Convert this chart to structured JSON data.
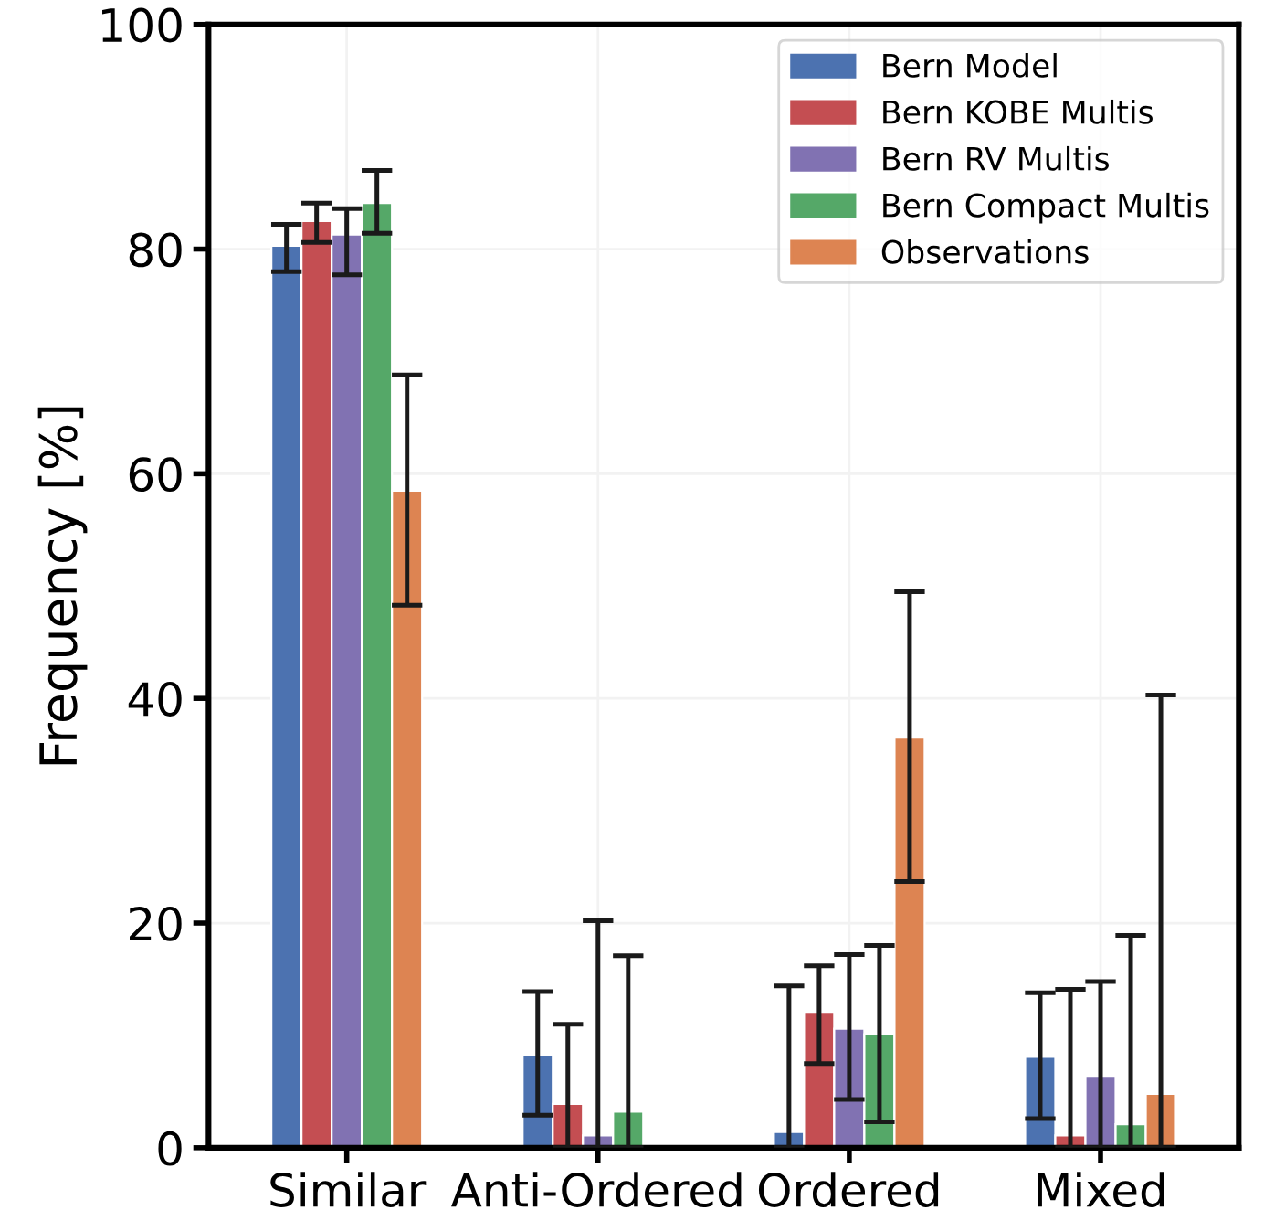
{
  "chart_data": {
    "type": "bar",
    "ylabel": "Frequency [%]",
    "categories": [
      "Similar",
      "Anti-Ordered",
      "Ordered",
      "Mixed"
    ],
    "series": [
      {
        "name": "Bern Model",
        "color": "#4c72b0",
        "values": [
          80.3,
          8.3,
          1.4,
          8.1
        ],
        "errors": [
          [
            78.0,
            82.2
          ],
          [
            2.9,
            13.9
          ],
          [
            0,
            14.4
          ],
          [
            2.6,
            13.8
          ]
        ]
      },
      {
        "name": "Bern KOBE Multis",
        "color": "#c44e52",
        "values": [
          82.5,
          3.9,
          12.1,
          1.1
        ],
        "errors": [
          [
            80.6,
            84.1
          ],
          [
            0,
            11.0
          ],
          [
            7.5,
            16.2
          ],
          [
            0,
            14.1
          ]
        ]
      },
      {
        "name": "Bern RV Multis",
        "color": "#8172b2",
        "values": [
          81.3,
          1.1,
          10.6,
          6.4
        ],
        "errors": [
          [
            77.7,
            83.6
          ],
          [
            0,
            20.2
          ],
          [
            4.3,
            17.2
          ],
          [
            0,
            14.8
          ]
        ]
      },
      {
        "name": "Bern Compact Multis",
        "color": "#55a868",
        "values": [
          84.1,
          3.2,
          10.1,
          2.1
        ],
        "errors": [
          [
            81.4,
            87.0
          ],
          [
            0,
            17.1
          ],
          [
            2.3,
            18.0
          ],
          [
            0,
            18.9
          ]
        ]
      },
      {
        "name": "Observations",
        "color": "#dd8452",
        "values": [
          58.5,
          null,
          36.5,
          4.8
        ],
        "errors": [
          [
            48.3,
            68.8
          ],
          null,
          [
            23.7,
            49.5
          ],
          [
            0,
            40.3
          ]
        ]
      }
    ],
    "ylim": [
      0,
      100
    ],
    "yticks": [
      0,
      20,
      40,
      60,
      80,
      100
    ],
    "grid": true,
    "legend": "top right"
  }
}
